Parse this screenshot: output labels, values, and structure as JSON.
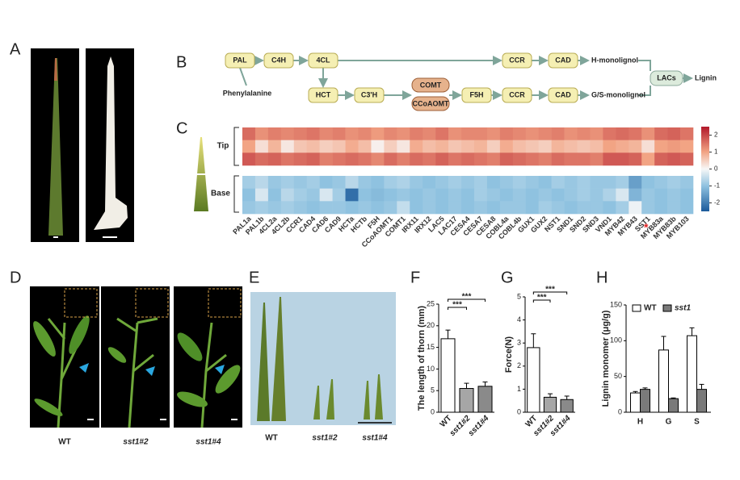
{
  "panel_labels": [
    "A",
    "B",
    "C",
    "D",
    "E",
    "F",
    "G",
    "H"
  ],
  "pathway": {
    "nodes": [
      "PAL",
      "C4H",
      "4CL",
      "CCR",
      "CAD",
      "HCT",
      "C3'H",
      "COMT",
      "CCoAOMT",
      "F5H",
      "CCR",
      "CAD",
      "LACs"
    ],
    "substrate": "Phenylalanine",
    "products": [
      "H-monolignol",
      "G/S-monolignol",
      "Lignin"
    ]
  },
  "heatmap": {
    "row_groups": [
      "Tip",
      "Base"
    ],
    "marker": "*",
    "genes": [
      "PAL1a",
      "PAL1b",
      "4CL2a",
      "4CL2b",
      "CCR1",
      "CAD4",
      "CAD6",
      "CAD9",
      "HCTa",
      "HCTb",
      "F5H",
      "CCoAOMT1",
      "COMT1",
      "IRX11",
      "IRX12",
      "LAC5",
      "LAC17",
      "CESA4",
      "CESA7",
      "CESA8",
      "COBL4a",
      "COBL4b",
      "GUX1",
      "GUX2",
      "NST1",
      "SND1",
      "SND2",
      "SND3",
      "VND1",
      "MYB42",
      "MYB43",
      "SST1",
      "MYB83a",
      "MYB83b",
      "MYB103"
    ],
    "values": [
      [
        1.6,
        1.2,
        1.4,
        1.3,
        1.4,
        1.5,
        1.3,
        1.4,
        1.2,
        1.3,
        1.1,
        1.3,
        1.2,
        1.4,
        1.3,
        1.5,
        1.2,
        1.3,
        1.3,
        1.2,
        1.4,
        1.3,
        1.2,
        1.3,
        1.4,
        1.2,
        1.3,
        1.2,
        1.5,
        1.6,
        1.5,
        1.2,
        1.6,
        1.7,
        1.5
      ],
      [
        1.0,
        0.3,
        0.8,
        0.2,
        0.6,
        0.7,
        0.5,
        0.6,
        0.9,
        0.7,
        0.1,
        0.5,
        0.2,
        0.9,
        0.7,
        0.8,
        0.6,
        0.7,
        0.8,
        0.5,
        0.9,
        0.7,
        0.6,
        0.5,
        0.8,
        0.7,
        0.6,
        0.7,
        1.0,
        0.9,
        0.8,
        0.3,
        1.0,
        1.1,
        1.0
      ],
      [
        1.8,
        1.6,
        1.7,
        1.5,
        1.6,
        1.7,
        1.4,
        1.5,
        1.6,
        1.5,
        1.3,
        1.6,
        1.4,
        1.6,
        1.5,
        1.7,
        1.5,
        1.6,
        1.5,
        1.4,
        1.7,
        1.6,
        1.5,
        1.4,
        1.6,
        1.5,
        1.5,
        1.4,
        1.8,
        1.8,
        1.7,
        1.0,
        1.7,
        1.8,
        1.7
      ],
      [
        -0.8,
        -0.6,
        -0.9,
        -0.8,
        -0.9,
        -0.8,
        -1.0,
        -0.9,
        -0.6,
        -0.9,
        -1.0,
        -0.8,
        -0.7,
        -0.9,
        -1.0,
        -0.9,
        -0.8,
        -0.9,
        -0.8,
        -1.0,
        -0.9,
        -0.8,
        -0.9,
        -1.0,
        -0.8,
        -0.9,
        -0.8,
        -0.9,
        -0.9,
        -0.8,
        -1.5,
        -1.0,
        -0.9,
        -0.8,
        -0.9
      ],
      [
        -1.0,
        -0.3,
        -1.0,
        -0.6,
        -0.8,
        -0.9,
        -0.3,
        -0.8,
        -2.2,
        -1.0,
        -1.1,
        -1.0,
        -0.9,
        -1.0,
        -0.9,
        -1.0,
        -0.9,
        -1.0,
        -0.8,
        -0.9,
        -1.0,
        -0.9,
        -1.0,
        -0.9,
        -1.0,
        -0.9,
        -0.8,
        -0.9,
        -0.7,
        -0.3,
        -1.2,
        -0.9,
        -1.0,
        -0.9,
        -1.0
      ],
      [
        -0.9,
        -0.8,
        -0.9,
        -0.8,
        -0.9,
        -1.0,
        -0.9,
        -0.9,
        -1.0,
        -0.9,
        -1.0,
        -0.9,
        -0.5,
        -1.0,
        -0.9,
        -1.0,
        -0.9,
        -1.0,
        -0.9,
        -1.0,
        -0.9,
        -0.9,
        -1.0,
        -0.8,
        -0.9,
        -1.0,
        -0.9,
        -0.9,
        -1.0,
        -0.8,
        -0.1,
        -0.9,
        -1.0,
        -0.9,
        -1.0
      ]
    ],
    "colorbar": {
      "lim": [
        -2.5,
        2.5
      ],
      "ticks": [
        2,
        1,
        0,
        -1,
        -2
      ]
    }
  },
  "photo_labels": {
    "D": [
      "WT",
      "sst1#2",
      "sst1#4"
    ],
    "E": [
      "WT",
      "sst1#2",
      "sst1#4"
    ]
  },
  "charts": [
    {
      "type": "bar",
      "ylabel": "The length of thorn (mm)",
      "categories": [
        "WT",
        "sst1#2",
        "sst1#4"
      ],
      "values": [
        17,
        5.5,
        6
      ],
      "errors": [
        2,
        1.2,
        1
      ],
      "colors": [
        "#ffffff",
        "#a6a6a6",
        "#8a8a8a"
      ],
      "ylim": [
        0,
        25
      ],
      "yticks": [
        0,
        5,
        10,
        15,
        20,
        25
      ],
      "annotations": [
        "***",
        "***"
      ]
    },
    {
      "type": "bar",
      "ylabel": "Force(N)",
      "categories": [
        "WT",
        "sst1#2",
        "sst1#4"
      ],
      "values": [
        2.8,
        0.65,
        0.55
      ],
      "errors": [
        0.6,
        0.15,
        0.15
      ],
      "colors": [
        "#ffffff",
        "#a6a6a6",
        "#8a8a8a"
      ],
      "ylim": [
        0,
        5
      ],
      "yticks": [
        0,
        1,
        2,
        3,
        4,
        5
      ],
      "annotations": [
        "***",
        "***"
      ]
    },
    {
      "type": "grouped-bar",
      "ylabel": "Lignin monomer (μg/g)",
      "categories": [
        "H",
        "G",
        "S"
      ],
      "series": [
        {
          "name": "WT",
          "color": "#ffffff",
          "values": [
            27,
            87,
            107
          ],
          "errors": [
            2,
            19,
            11
          ]
        },
        {
          "name": "sst1",
          "color": "#7a7a7a",
          "values": [
            32,
            19,
            32
          ],
          "errors": [
            2,
            1,
            7
          ]
        }
      ],
      "ylim": [
        0,
        150
      ],
      "yticks": [
        0,
        50,
        100,
        150
      ]
    }
  ]
}
